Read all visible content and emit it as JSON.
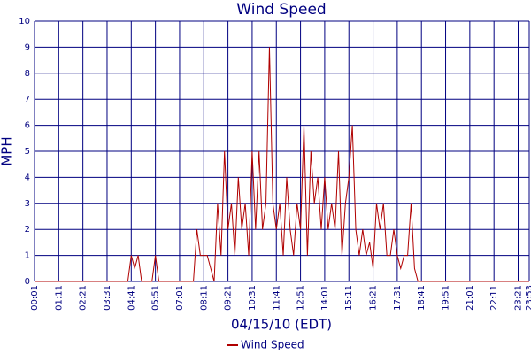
{
  "chart_data": {
    "type": "line",
    "title": "Wind Speed",
    "x_label": "04/15/10 (EDT)",
    "y_label": "MPH",
    "x": [
      1,
      261,
      271,
      281,
      291,
      301,
      311,
      321,
      331,
      341,
      351,
      361,
      371,
      381,
      391,
      401,
      411,
      421,
      431,
      441,
      451,
      461,
      471,
      481,
      491,
      501,
      511,
      521,
      531,
      541,
      551,
      561,
      571,
      581,
      591,
      601,
      611,
      621,
      631,
      641,
      651,
      661,
      671,
      681,
      691,
      701,
      711,
      721,
      731,
      741,
      751,
      761,
      771,
      781,
      791,
      801,
      811,
      821,
      831,
      841,
      851,
      861,
      871,
      881,
      891,
      901,
      911,
      921,
      931,
      941,
      951,
      961,
      971,
      981,
      991,
      1001,
      1011,
      1021,
      1031,
      1041,
      1051,
      1061,
      1071,
      1081,
      1091,
      1101,
      1111,
      1121,
      1131,
      1433
    ],
    "series": [
      {
        "name": "Wind Speed",
        "color": "#b00000",
        "values": [
          0,
          0,
          0,
          1,
          0.5,
          1,
          0,
          0,
          0,
          0,
          1,
          0,
          0,
          0,
          0,
          0,
          0,
          0,
          0,
          0,
          0,
          0,
          2,
          1,
          1,
          1,
          0.5,
          0,
          3,
          1,
          5,
          2,
          3,
          1,
          4,
          2,
          3,
          1,
          5,
          2,
          5,
          2,
          3,
          9,
          3,
          2,
          3,
          1,
          4,
          2,
          1,
          3,
          2,
          6,
          1,
          5,
          3,
          4,
          2,
          4,
          2,
          3,
          2,
          5,
          1,
          3,
          4,
          6,
          2,
          1,
          2,
          1,
          1.5,
          0.5,
          3,
          2,
          3,
          1,
          1,
          2,
          1,
          0.5,
          1,
          1,
          3,
          0.5,
          0,
          0,
          0,
          0
        ]
      }
    ],
    "xlim": [
      1,
      1433
    ],
    "xticks": [
      {
        "value": 1,
        "label": "00:01"
      },
      {
        "value": 71,
        "label": "01:11"
      },
      {
        "value": 141,
        "label": "02:21"
      },
      {
        "value": 211,
        "label": "03:31"
      },
      {
        "value": 281,
        "label": "04:41"
      },
      {
        "value": 351,
        "label": "05:51"
      },
      {
        "value": 421,
        "label": "07:01"
      },
      {
        "value": 491,
        "label": "08:11"
      },
      {
        "value": 561,
        "label": "09:21"
      },
      {
        "value": 631,
        "label": "10:31"
      },
      {
        "value": 701,
        "label": "11:41"
      },
      {
        "value": 771,
        "label": "12:51"
      },
      {
        "value": 841,
        "label": "14:01"
      },
      {
        "value": 911,
        "label": "15:11"
      },
      {
        "value": 981,
        "label": "16:21"
      },
      {
        "value": 1051,
        "label": "17:31"
      },
      {
        "value": 1121,
        "label": "18:41"
      },
      {
        "value": 1191,
        "label": "19:51"
      },
      {
        "value": 1261,
        "label": "21:01"
      },
      {
        "value": 1331,
        "label": "22:11"
      },
      {
        "value": 1401,
        "label": "23:21"
      },
      {
        "value": 1433,
        "label": "23:53"
      }
    ],
    "ylim": [
      0,
      10
    ],
    "yticks": [
      0,
      1,
      2,
      3,
      4,
      5,
      6,
      7,
      8,
      9,
      10
    ],
    "grid": true,
    "grid_color": "#000080",
    "legend": "bottom"
  }
}
